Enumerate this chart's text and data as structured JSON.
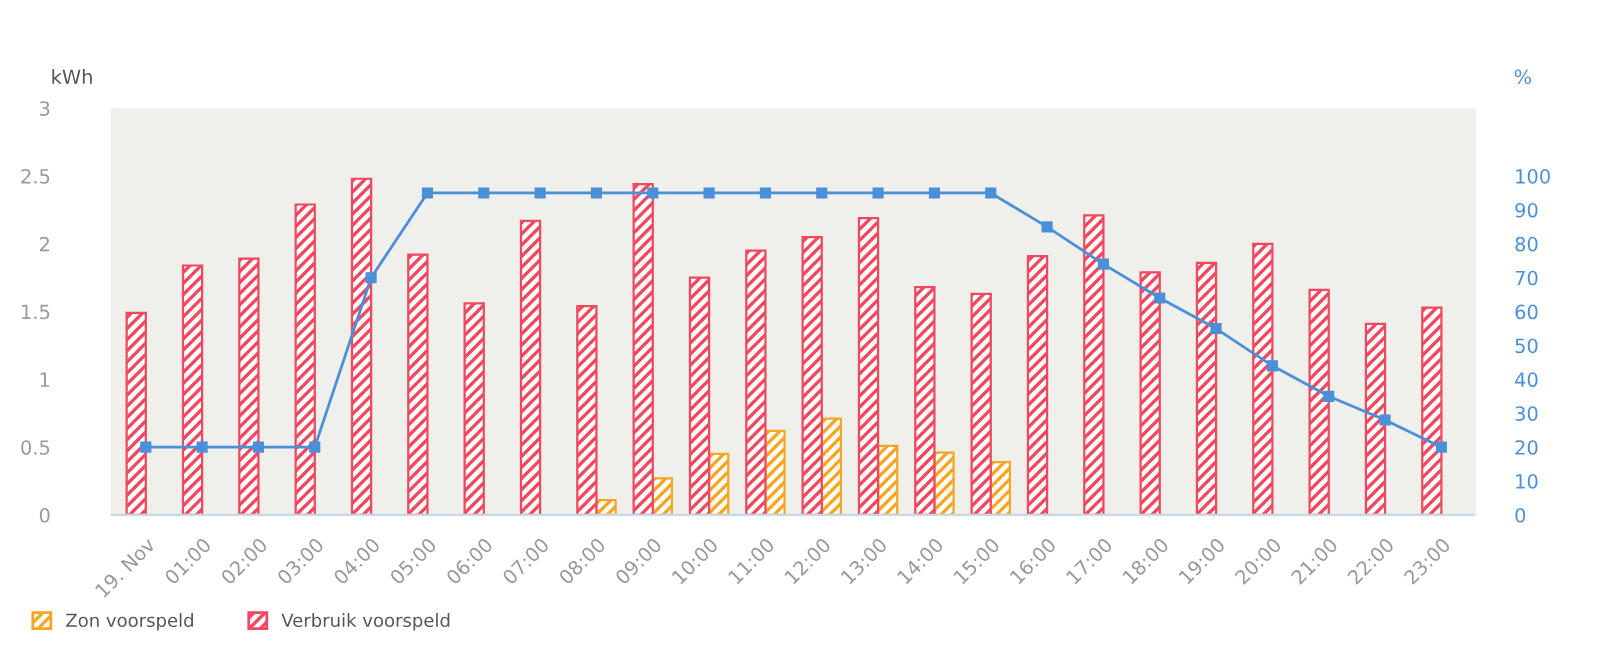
{
  "chart_data": {
    "type": "bar",
    "ylabel": "kWh",
    "y2label": "%",
    "categories": [
      "19. Nov",
      "01:00",
      "02:00",
      "03:00",
      "04:00",
      "05:00",
      "06:00",
      "07:00",
      "08:00",
      "09:00",
      "10:00",
      "11:00",
      "12:00",
      "13:00",
      "14:00",
      "15:00",
      "16:00",
      "17:00",
      "18:00",
      "19:00",
      "20:00",
      "21:00",
      "22:00",
      "23:00"
    ],
    "series": [
      {
        "name": "Zon voorspeld",
        "color": "#f5a623",
        "values": [
          null,
          null,
          null,
          null,
          null,
          null,
          null,
          null,
          0.11,
          0.27,
          0.45,
          0.62,
          0.71,
          0.51,
          0.46,
          0.39,
          null,
          null,
          null,
          null,
          null,
          null,
          null,
          null
        ]
      },
      {
        "name": "Verbruik voorspeld",
        "color": "#f0485e",
        "values": [
          1.49,
          1.84,
          1.89,
          2.29,
          2.48,
          1.92,
          1.56,
          2.17,
          1.54,
          2.44,
          1.75,
          1.95,
          2.05,
          2.19,
          1.68,
          1.63,
          1.91,
          2.21,
          1.79,
          1.86,
          2.0,
          1.66,
          1.41,
          1.53
        ]
      },
      {
        "type": "line",
        "axis": "y2",
        "color": "#4a90d9",
        "marker": "square",
        "values": [
          20,
          20,
          20,
          20,
          70,
          95,
          95,
          95,
          95,
          95,
          95,
          95,
          95,
          95,
          95,
          95,
          85,
          74,
          64,
          55,
          44,
          35,
          28,
          20
        ]
      }
    ],
    "ylim": [
      0,
      3
    ],
    "yticks": [
      0,
      0.5,
      1,
      1.5,
      2,
      2.5,
      3
    ],
    "y2lim": [
      0,
      120
    ],
    "y2ticks": [
      0,
      10,
      20,
      30,
      40,
      50,
      60,
      70,
      80,
      90,
      100
    ],
    "grid": false,
    "legend": "bottom left"
  }
}
